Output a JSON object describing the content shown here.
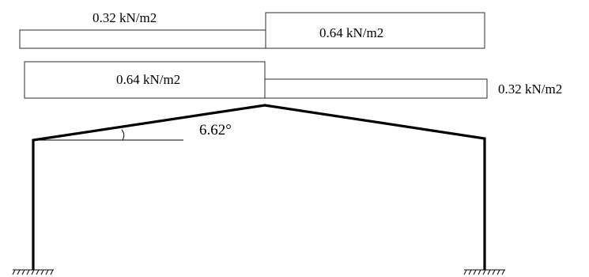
{
  "load_case_1": {
    "left_load": "0.32 kN/m2",
    "right_load": "0.64 kN/m2"
  },
  "load_case_2": {
    "left_load": "0.64 kN/m2",
    "right_load": "0.32 kN/m2"
  },
  "roof": {
    "pitch_angle": "6.62°"
  },
  "colors": {
    "line": "#000000",
    "box_border": "#2b2b2b",
    "background": "#ffffff"
  }
}
